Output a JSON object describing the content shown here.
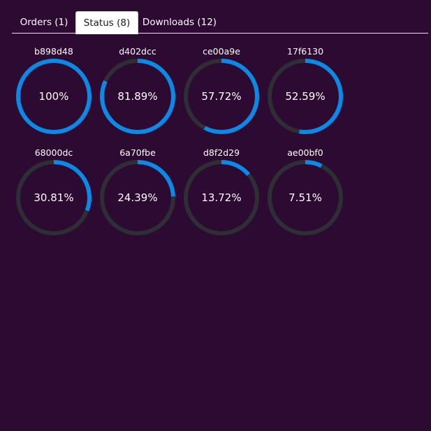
{
  "tabs": [
    {
      "label": "Orders (1)",
      "active": false
    },
    {
      "label": "Status (8)",
      "active": true
    },
    {
      "label": "Downloads (12)",
      "active": false
    }
  ],
  "colors": {
    "background": "#2d0a31",
    "track": "#2e2e35",
    "progress": "#0a8ae6"
  },
  "items": [
    {
      "id": "b898d48",
      "value_text": "100%",
      "value": 100
    },
    {
      "id": "d402dcc",
      "value_text": "81.89%",
      "value": 81.89
    },
    {
      "id": "ce00a9e",
      "value_text": "57.72%",
      "value": 57.72
    },
    {
      "id": "17f6130",
      "value_text": "52.59%",
      "value": 52.59
    },
    {
      "id": "68000dc",
      "value_text": "30.81%",
      "value": 30.81
    },
    {
      "id": "6a70fbe",
      "value_text": "24.39%",
      "value": 24.39
    },
    {
      "id": "d8f2d29",
      "value_text": "13.72%",
      "value": 13.72
    },
    {
      "id": "ae00bf0",
      "value_text": "7.51%",
      "value": 7.51
    }
  ]
}
